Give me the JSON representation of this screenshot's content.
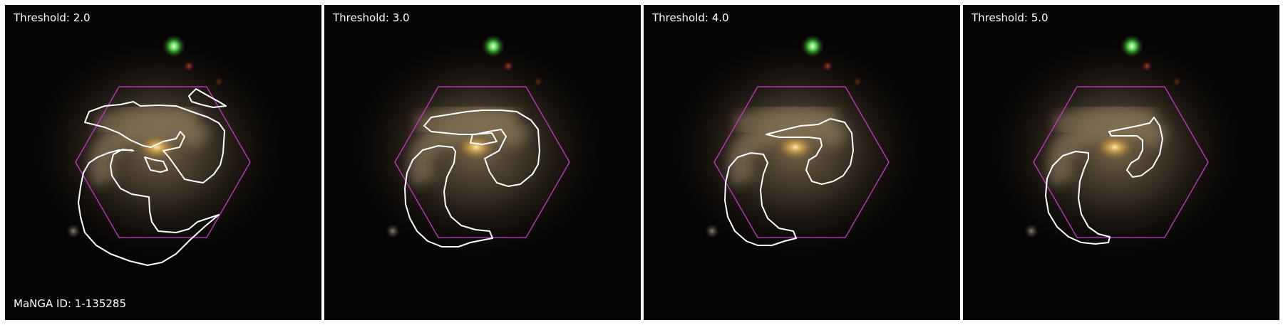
{
  "panels": [
    {
      "label": "Threshold: 2.0"
    },
    {
      "label": "Threshold: 3.0"
    },
    {
      "label": "Threshold: 4.0"
    },
    {
      "label": "Threshold: 5.0"
    }
  ],
  "manga_id": "MaNGA ID: 1-135285",
  "colors": {
    "background": "#070504",
    "contour": "#ffffff",
    "hexagon": "#c23bc8"
  }
}
